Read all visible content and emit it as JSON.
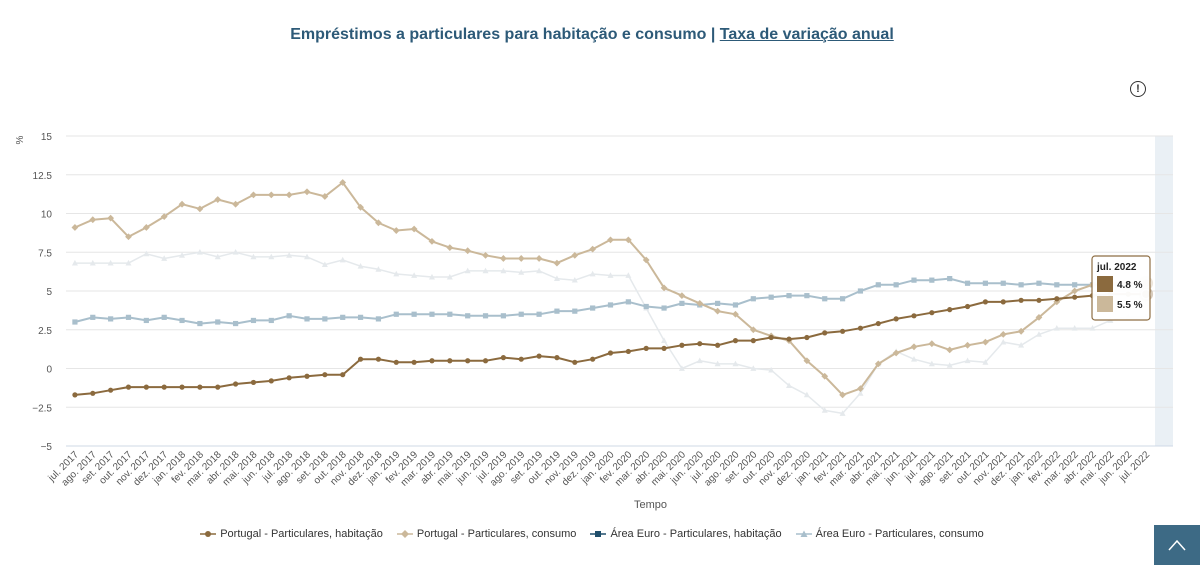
{
  "title": {
    "main": "Empréstimos a particulares para habitação e consumo | ",
    "link": "Taxa de variação anual"
  },
  "info_icon": "info-circle-icon",
  "scroll_top_icon": "chevron-up-icon",
  "chart_data": {
    "type": "line",
    "ylabel": "%",
    "xlabel": "Tempo",
    "ylim": [
      -5,
      15
    ],
    "yticks": [
      -5,
      -2.5,
      0,
      2.5,
      5,
      7.5,
      10,
      12.5,
      15
    ],
    "ytick_labels": [
      "−5",
      "−2.5",
      "0",
      "2.5",
      "5",
      "7.5",
      "10",
      "12.5",
      "15"
    ],
    "grid": true,
    "legend_position": "bottom",
    "x": [
      "jul. 2017",
      "ago. 2017",
      "set. 2017",
      "out. 2017",
      "nov. 2017",
      "dez. 2017",
      "jan. 2018",
      "fev. 2018",
      "mar. 2018",
      "abr. 2018",
      "mai. 2018",
      "jun. 2018",
      "jul. 2018",
      "ago. 2018",
      "set. 2018",
      "out. 2018",
      "nov. 2018",
      "dez. 2018",
      "jan. 2019",
      "fev. 2019",
      "mar. 2019",
      "abr. 2019",
      "mai. 2019",
      "jun. 2019",
      "jul. 2019",
      "ago. 2019",
      "set. 2019",
      "out. 2019",
      "nov. 2019",
      "dez. 2019",
      "jan. 2020",
      "fev. 2020",
      "mar. 2020",
      "abr. 2020",
      "mai. 2020",
      "jun. 2020",
      "jul. 2020",
      "ago. 2020",
      "set. 2020",
      "out. 2020",
      "nov. 2020",
      "dez. 2020",
      "jan. 2021",
      "fev. 2021",
      "mar. 2021",
      "abr. 2021",
      "mai. 2021",
      "jun. 2021",
      "jul. 2021",
      "ago. 2021",
      "set. 2021",
      "out. 2021",
      "nov. 2021",
      "dez. 2021",
      "jan. 2022",
      "fev. 2022",
      "mar. 2022",
      "abr. 2022",
      "mai. 2022",
      "jun. 2022",
      "jul. 2022"
    ],
    "series": [
      {
        "name": "Portugal - Particulares, habitação",
        "color": "#8b6a3e",
        "marker": "circle",
        "width": 2,
        "values": [
          -1.7,
          -1.6,
          -1.4,
          -1.2,
          -1.2,
          -1.2,
          -1.2,
          -1.2,
          -1.2,
          -1.0,
          -0.9,
          -0.8,
          -0.6,
          -0.5,
          -0.4,
          -0.4,
          0.6,
          0.6,
          0.4,
          0.4,
          0.5,
          0.5,
          0.5,
          0.5,
          0.7,
          0.6,
          0.8,
          0.7,
          0.4,
          0.6,
          1.0,
          1.1,
          1.3,
          1.3,
          1.5,
          1.6,
          1.5,
          1.8,
          1.8,
          2.0,
          1.9,
          2.0,
          2.3,
          2.4,
          2.6,
          2.9,
          3.2,
          3.4,
          3.6,
          3.8,
          4.0,
          4.3,
          4.3,
          4.4,
          4.4,
          4.5,
          4.6,
          4.7,
          4.8,
          4.8,
          4.8
        ]
      },
      {
        "name": "Portugal - Particulares, consumo",
        "color": "#cbb89a",
        "marker": "diamond",
        "width": 2,
        "values": [
          9.1,
          9.6,
          9.7,
          8.5,
          9.1,
          9.8,
          10.6,
          10.3,
          10.9,
          10.6,
          11.2,
          11.2,
          11.2,
          11.4,
          11.1,
          12.0,
          10.4,
          9.4,
          8.9,
          9.0,
          8.2,
          7.8,
          7.6,
          7.3,
          7.1,
          7.1,
          7.1,
          6.8,
          7.3,
          7.7,
          8.3,
          8.3,
          7.0,
          5.2,
          4.7,
          4.2,
          3.7,
          3.5,
          2.5,
          2.1,
          1.8,
          0.5,
          -0.5,
          -1.7,
          -1.3,
          0.3,
          1.0,
          1.4,
          1.6,
          1.2,
          1.5,
          1.7,
          2.2,
          2.4,
          3.3,
          4.3,
          5.0,
          5.4,
          5.5,
          5.5,
          5.5
        ]
      },
      {
        "name": "Área Euro - Particulares, habitação",
        "color": "#a9bfcc",
        "marker": "square",
        "width": 2,
        "values": [
          3.0,
          3.3,
          3.2,
          3.3,
          3.1,
          3.3,
          3.1,
          2.9,
          3.0,
          2.9,
          3.1,
          3.1,
          3.4,
          3.2,
          3.2,
          3.3,
          3.3,
          3.2,
          3.5,
          3.5,
          3.5,
          3.5,
          3.4,
          3.4,
          3.4,
          3.5,
          3.5,
          3.7,
          3.7,
          3.9,
          4.1,
          4.3,
          4.0,
          3.9,
          4.2,
          4.1,
          4.2,
          4.1,
          4.5,
          4.6,
          4.7,
          4.7,
          4.5,
          4.5,
          5.0,
          5.4,
          5.4,
          5.7,
          5.7,
          5.8,
          5.5,
          5.5,
          5.5,
          5.4,
          5.5,
          5.4,
          5.4,
          5.4,
          5.4,
          5.3,
          5.3
        ]
      },
      {
        "name": "Área Euro - Particulares, consumo",
        "color": "#e5e9ec",
        "marker": "triangle",
        "width": 1.5,
        "values": [
          6.8,
          6.8,
          6.8,
          6.8,
          7.4,
          7.1,
          7.3,
          7.5,
          7.2,
          7.5,
          7.2,
          7.2,
          7.3,
          7.2,
          6.7,
          7.0,
          6.6,
          6.4,
          6.1,
          6.0,
          5.9,
          5.9,
          6.3,
          6.3,
          6.3,
          6.2,
          6.3,
          5.8,
          5.7,
          6.1,
          6.0,
          6.0,
          3.9,
          1.8,
          0.0,
          0.5,
          0.3,
          0.3,
          0.0,
          -0.1,
          -1.1,
          -1.7,
          -2.7,
          -2.9,
          -1.6,
          0.3,
          1.1,
          0.6,
          0.3,
          0.2,
          0.5,
          0.4,
          1.7,
          1.5,
          2.2,
          2.6,
          2.6,
          2.6,
          3.1,
          3.3,
          3.3
        ]
      }
    ],
    "tooltip": {
      "title": "jul. 2022",
      "entries": [
        {
          "value": "4.8 %",
          "color": "#8b6a3e"
        },
        {
          "value": "5.5 %",
          "color": "#cbb89a"
        }
      ]
    }
  },
  "legend": [
    {
      "label": "Portugal - Particulares, habitação",
      "color": "#8b6a3e",
      "icon": "line-circle-marker-icon"
    },
    {
      "label": "Portugal - Particulares, consumo",
      "color": "#cbb89a",
      "icon": "line-diamond-marker-icon"
    },
    {
      "label": "Área Euro - Particulares, habitação",
      "color": "#1f4e6b",
      "icon": "line-square-marker-icon"
    },
    {
      "label": "Área Euro - Particulares, consumo",
      "color": "#a9bfcc",
      "icon": "line-triangle-marker-icon"
    }
  ]
}
